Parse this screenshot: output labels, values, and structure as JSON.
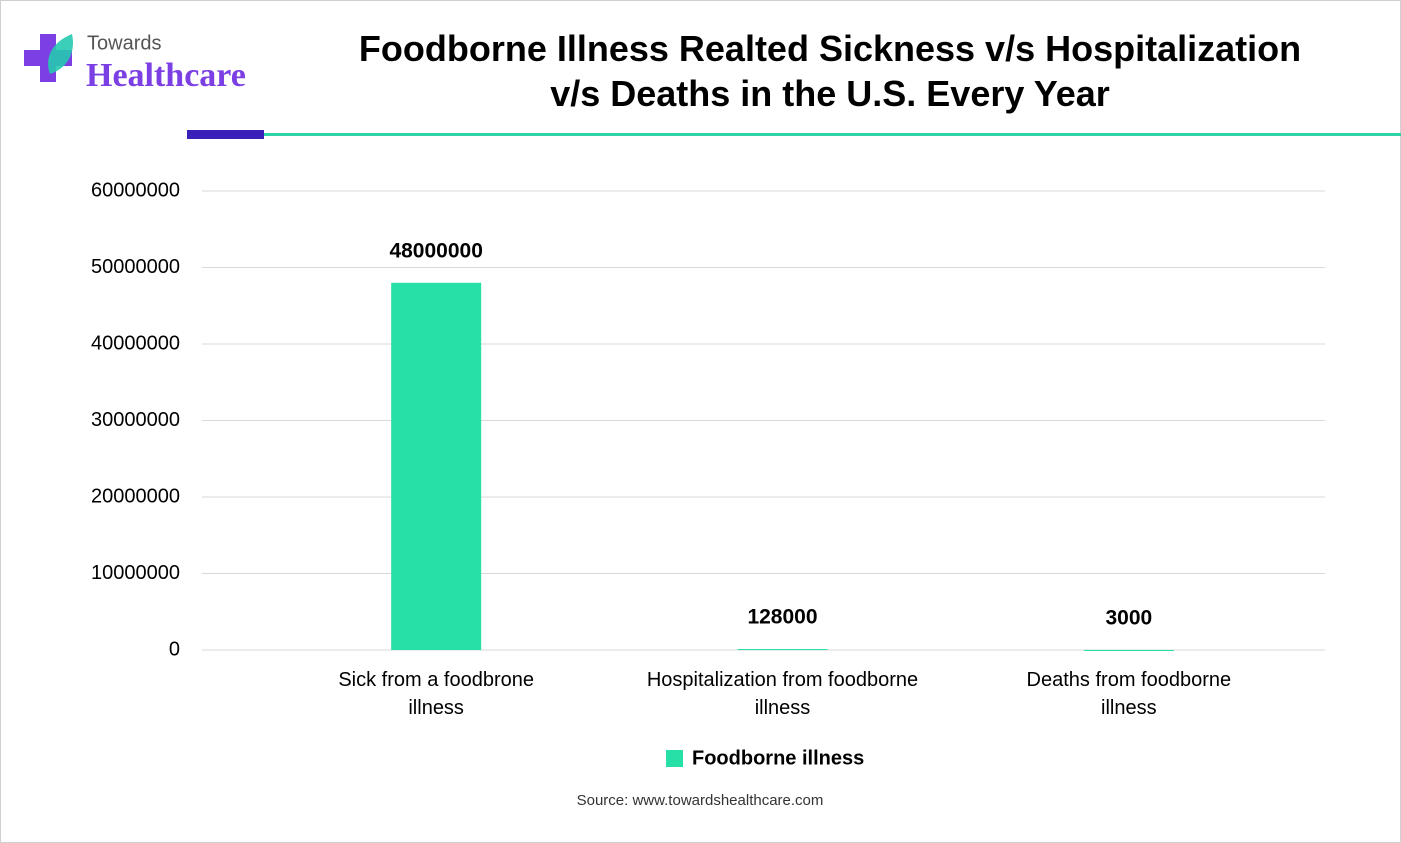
{
  "logo": {
    "line1": "Towards",
    "line2": "Healthcare"
  },
  "chart_data": {
    "type": "bar",
    "title": "Foodborne Illness Realted Sickness v/s Hospitalization v/s Deaths in the U.S. Every Year",
    "categories": [
      "Sick from a foodbrone illness",
      "Hospitalization from foodborne illness",
      "Deaths from foodborne illness"
    ],
    "series": [
      {
        "name": "Foodborne illness",
        "color": "#26e0a8",
        "values": [
          48000000,
          128000,
          3000
        ]
      }
    ],
    "ylim": [
      0,
      60000000
    ],
    "yticks": [
      0,
      10000000,
      20000000,
      30000000,
      40000000,
      50000000,
      60000000
    ],
    "grid": true,
    "legend": "bottom",
    "source": "Source: www.towardshealthcare.com"
  }
}
